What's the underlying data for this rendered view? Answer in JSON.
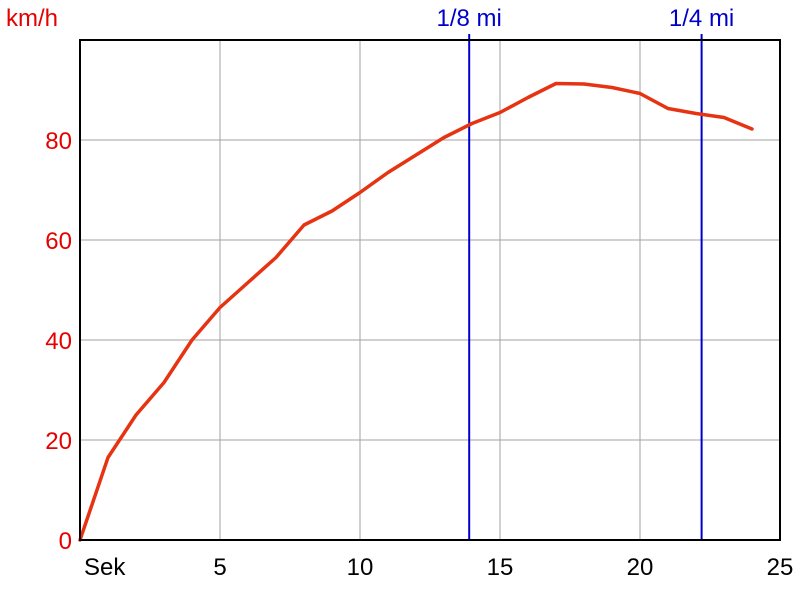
{
  "chart_data": {
    "type": "line",
    "title": "",
    "xlabel": "Sek",
    "ylabel": "km/h",
    "xlim": [
      0,
      25
    ],
    "ylim": [
      0,
      100
    ],
    "x_ticks": [
      5,
      10,
      15,
      20,
      25
    ],
    "y_ticks": [
      0,
      20,
      40,
      60,
      80
    ],
    "grid": true,
    "colors": {
      "series": "#e63312",
      "markers": "#0000cc",
      "y_axis_text": "#e60000",
      "grid": "#a0a0a0"
    },
    "series": [
      {
        "x": [
          0,
          1,
          2,
          3,
          4,
          5,
          6,
          7,
          8,
          9,
          10,
          11,
          12,
          13,
          14,
          15,
          16,
          17,
          18,
          19,
          20,
          21,
          22,
          23,
          24
        ],
        "y": [
          0,
          16.5,
          25,
          31.5,
          40,
          46.5,
          51.5,
          56.5,
          63,
          65.8,
          69.5,
          73.5,
          77,
          80.5,
          83.3,
          85.5,
          88.5,
          91.3,
          91.2,
          90.5,
          89.3,
          86.3,
          85.3,
          84.5,
          82.2
        ]
      }
    ],
    "markers": [
      {
        "label": "1/8 mi",
        "x": 13.9
      },
      {
        "label": "1/4 mi",
        "x": 22.2
      }
    ]
  }
}
